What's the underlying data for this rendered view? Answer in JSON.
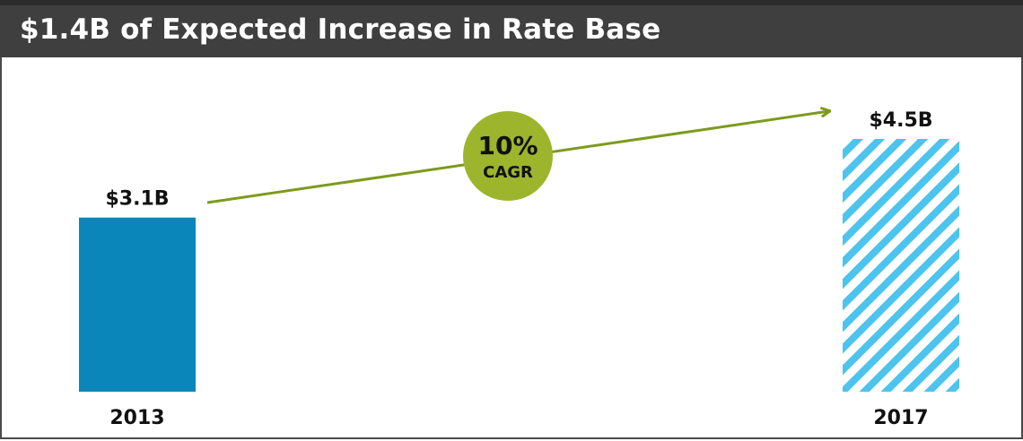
{
  "header": {
    "title": "$1.4B of Expected Increase in Rate Base"
  },
  "chart_data": {
    "type": "bar",
    "categories": [
      "2013",
      "2017"
    ],
    "values": [
      3.1,
      4.5
    ],
    "value_labels": [
      "$3.1B",
      "$4.5B"
    ],
    "ylim": [
      0,
      4.5
    ],
    "grid": false,
    "bar_styles": [
      "solid",
      "hatched"
    ],
    "annotation": {
      "line1": "10%",
      "line2": "CAGR"
    }
  },
  "colors": {
    "header_bg": "#3f3f3f",
    "bar_solid": "#0a86ba",
    "bar_hatch": "#4cc4ee",
    "arrow": "#7d9a1c",
    "cagr_circle": "#9cb52c"
  }
}
